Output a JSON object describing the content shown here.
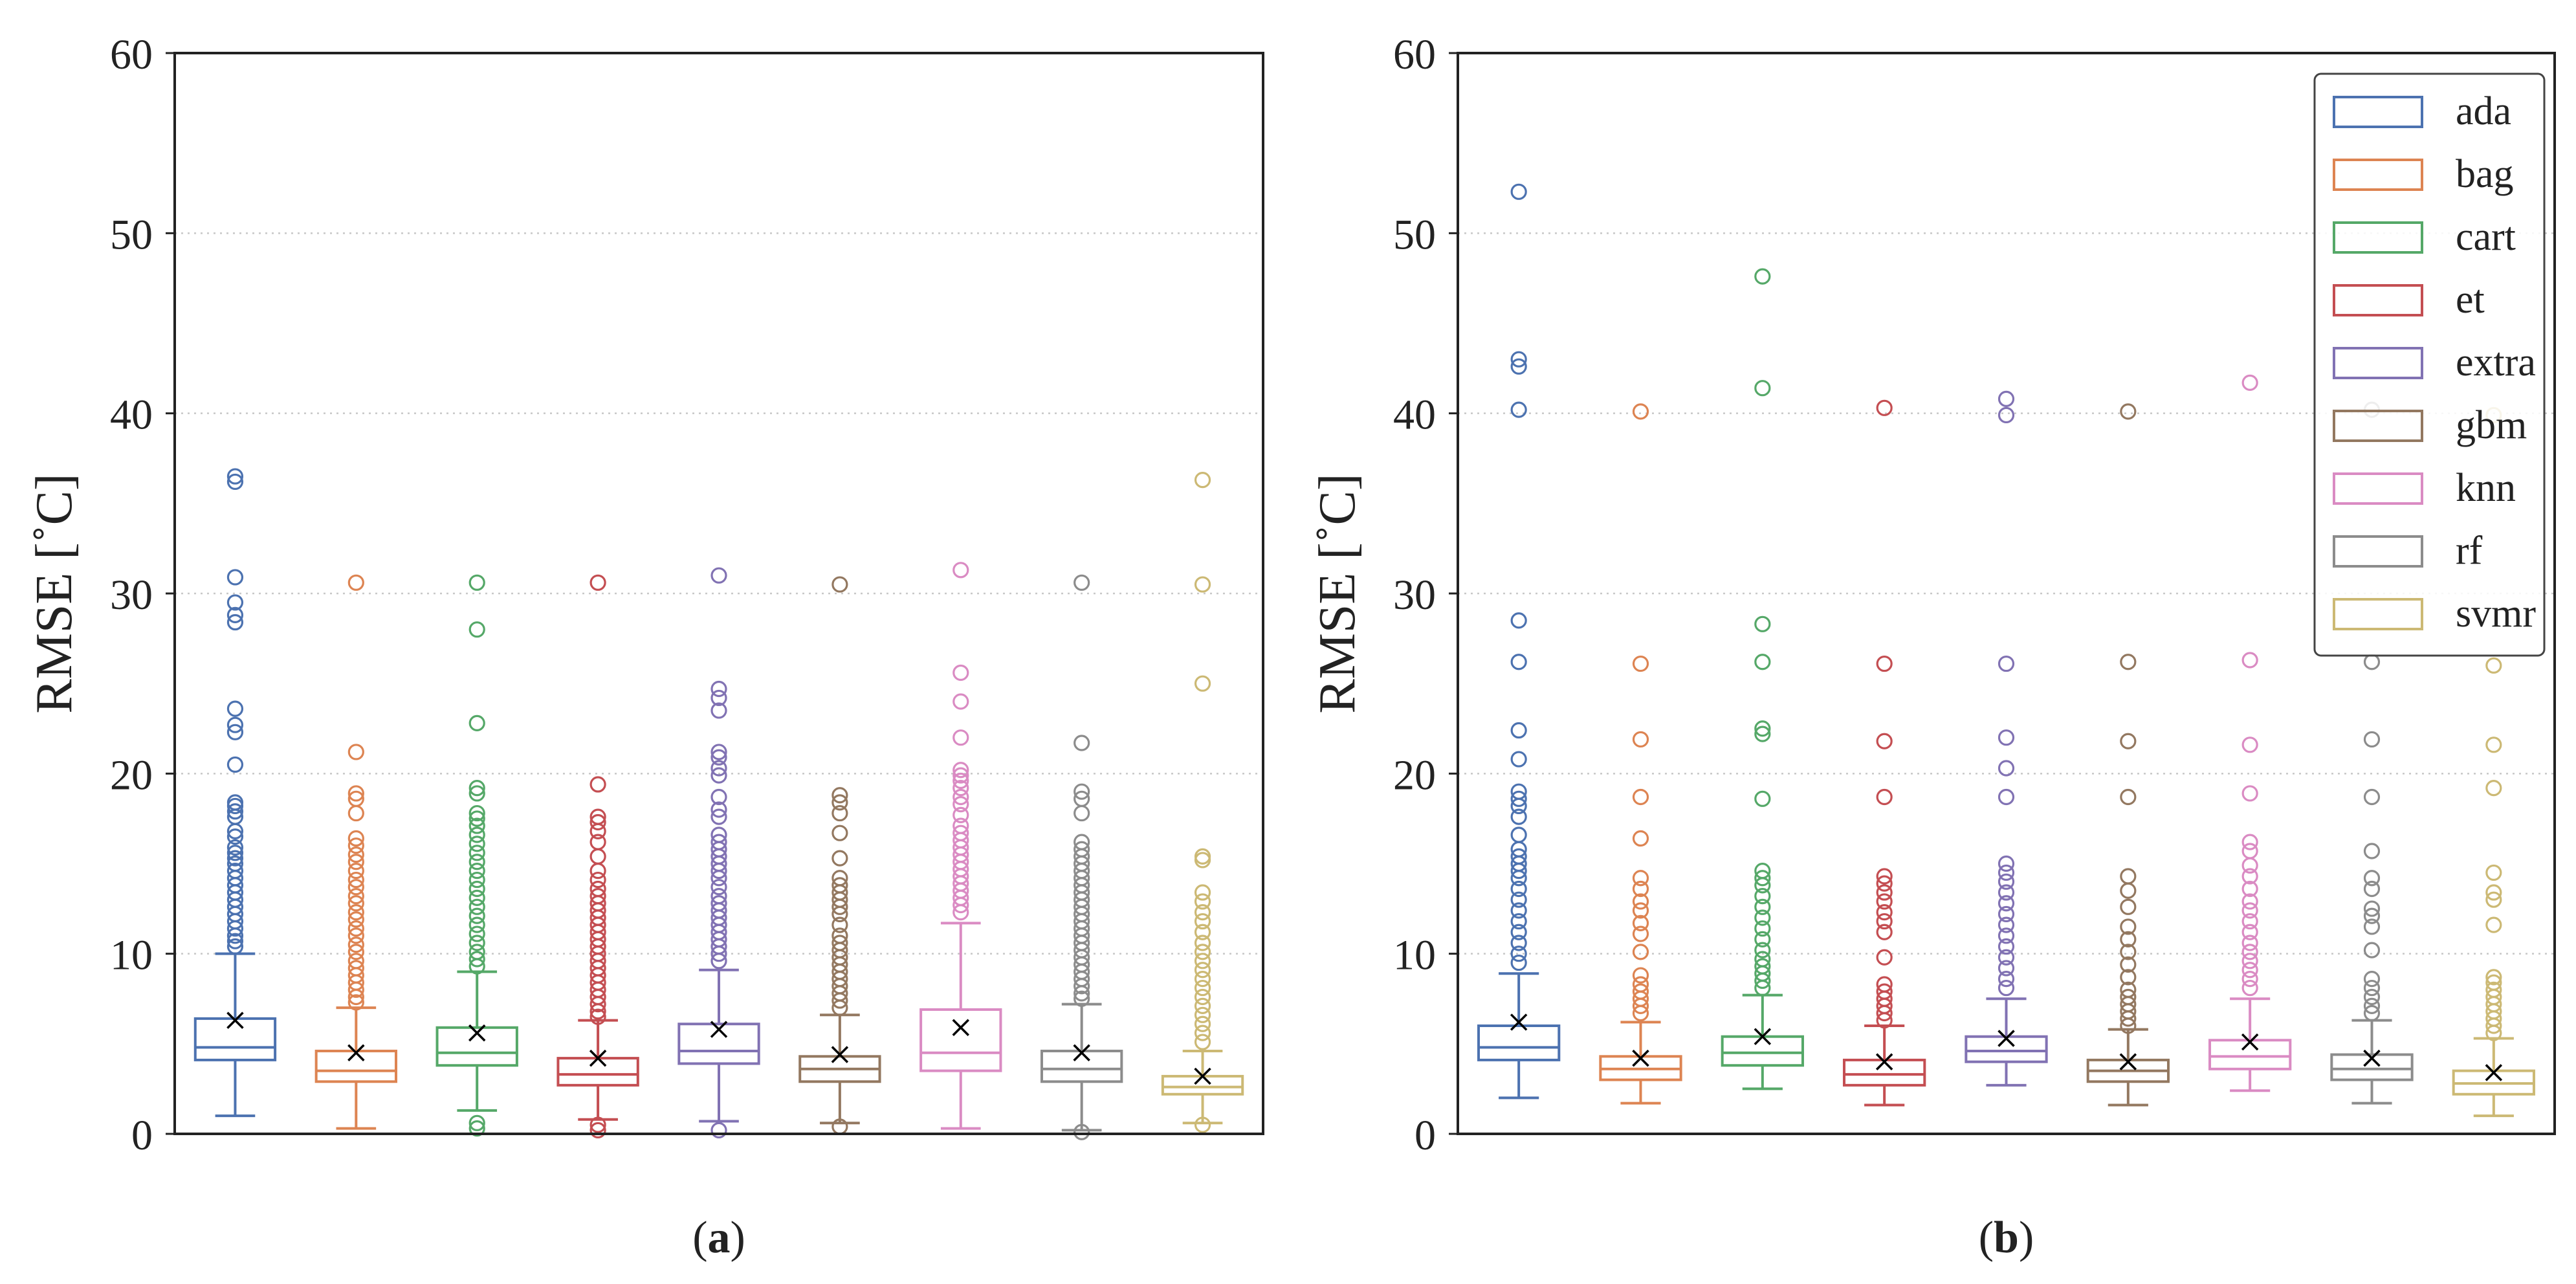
{
  "chart_data": [
    {
      "type": "box",
      "panel_label": "(a)",
      "ylabel": "RMSE [˚C]",
      "ylim": [
        0,
        60
      ],
      "yticks": [
        0,
        10,
        20,
        30,
        40,
        50,
        60
      ],
      "ytick_labels": [
        "0",
        "10",
        "20",
        "30",
        "40",
        "50",
        "60"
      ],
      "grid": "y dotted",
      "legend": null,
      "series": [
        {
          "name": "ada",
          "color": "#4c72b0",
          "whisker_low": 1.0,
          "q1": 4.1,
          "median": 4.8,
          "q3": 6.4,
          "whisker_high": 10.0,
          "mean": 6.3,
          "outliers": [
            36.5,
            36.2,
            30.9,
            29.5,
            28.8,
            28.4,
            23.6,
            22.7,
            22.3,
            20.5,
            18.4,
            18.2,
            17.9,
            17.6,
            16.8,
            16.5,
            15.9,
            15.6,
            15.3,
            15.0,
            14.6,
            14.2,
            13.8,
            13.4,
            13.0,
            12.6,
            12.2,
            11.8,
            11.4,
            11.0,
            10.7,
            10.4
          ]
        },
        {
          "name": "bag",
          "color": "#dd8452",
          "whisker_low": 0.3,
          "q1": 2.9,
          "median": 3.5,
          "q3": 4.6,
          "whisker_high": 7.0,
          "mean": 4.5,
          "outliers": [
            30.6,
            21.2,
            18.9,
            18.6,
            17.8,
            16.4,
            16.0,
            15.5,
            15.1,
            14.6,
            14.1,
            13.7,
            13.2,
            12.8,
            12.3,
            11.9,
            11.4,
            11.0,
            10.5,
            10.1,
            9.6,
            9.2,
            8.8,
            8.4,
            8.0,
            7.6,
            7.3
          ]
        },
        {
          "name": "cart",
          "color": "#55a868",
          "whisker_low": 1.3,
          "q1": 3.8,
          "median": 4.5,
          "q3": 5.9,
          "whisker_high": 9.0,
          "mean": 5.6,
          "outliers": [
            30.6,
            28.0,
            22.8,
            19.2,
            18.9,
            17.8,
            17.5,
            17.1,
            16.6,
            16.1,
            15.6,
            15.1,
            14.6,
            14.1,
            13.6,
            13.1,
            12.6,
            12.1,
            11.6,
            11.1,
            10.6,
            10.1,
            9.7,
            9.3,
            0.6,
            0.3
          ]
        },
        {
          "name": "et",
          "color": "#c44e52",
          "whisker_low": 0.8,
          "q1": 2.7,
          "median": 3.3,
          "q3": 4.2,
          "whisker_high": 6.3,
          "mean": 4.2,
          "outliers": [
            30.6,
            19.4,
            17.6,
            17.3,
            16.8,
            16.2,
            15.4,
            14.6,
            14.1,
            13.6,
            13.2,
            12.8,
            12.4,
            12.0,
            11.6,
            11.2,
            10.8,
            10.4,
            10.0,
            9.6,
            9.2,
            8.8,
            8.4,
            8.0,
            7.6,
            7.2,
            6.8,
            6.5,
            0.5,
            0.2
          ]
        },
        {
          "name": "extra",
          "color": "#8172b3",
          "whisker_low": 0.7,
          "q1": 3.9,
          "median": 4.6,
          "q3": 6.1,
          "whisker_high": 9.1,
          "mean": 5.8,
          "outliers": [
            31.0,
            24.7,
            24.2,
            23.5,
            21.2,
            20.9,
            20.3,
            19.9,
            18.7,
            18.0,
            17.6,
            16.6,
            16.2,
            15.8,
            15.4,
            15.0,
            14.6,
            14.2,
            13.7,
            13.2,
            12.8,
            12.4,
            12.0,
            11.6,
            11.2,
            10.8,
            10.4,
            10.0,
            9.6,
            0.2
          ]
        },
        {
          "name": "gbm",
          "color": "#937860",
          "whisker_low": 0.6,
          "q1": 2.9,
          "median": 3.6,
          "q3": 4.3,
          "whisker_high": 6.6,
          "mean": 4.4,
          "outliers": [
            30.5,
            18.8,
            18.4,
            17.8,
            16.7,
            15.3,
            14.2,
            13.8,
            13.4,
            13.0,
            12.6,
            12.2,
            11.6,
            11.0,
            10.6,
            10.2,
            9.8,
            9.4,
            9.0,
            8.6,
            8.2,
            7.8,
            7.4,
            7.0,
            0.4
          ]
        },
        {
          "name": "knn",
          "color": "#da8bc3",
          "whisker_low": 0.3,
          "q1": 3.5,
          "median": 4.5,
          "q3": 6.9,
          "whisker_high": 11.7,
          "mean": 5.9,
          "outliers": [
            31.3,
            25.6,
            24.0,
            22.0,
            20.2,
            19.9,
            19.6,
            19.2,
            18.7,
            18.3,
            17.7,
            17.1,
            16.7,
            16.3,
            15.9,
            15.5,
            15.1,
            14.7,
            14.3,
            13.9,
            13.5,
            13.1,
            12.7,
            12.3
          ]
        },
        {
          "name": "rf",
          "color": "#8c8c8c",
          "whisker_low": 0.2,
          "q1": 2.9,
          "median": 3.6,
          "q3": 4.6,
          "whisker_high": 7.2,
          "mean": 4.5,
          "outliers": [
            30.6,
            21.7,
            19.0,
            18.6,
            17.8,
            16.2,
            15.8,
            15.4,
            15.0,
            14.6,
            14.2,
            13.8,
            13.4,
            13.0,
            12.6,
            12.2,
            11.8,
            11.4,
            11.0,
            10.6,
            10.2,
            9.8,
            9.4,
            9.0,
            8.6,
            8.2,
            7.8,
            7.5,
            0.1
          ]
        },
        {
          "name": "svmr",
          "color": "#ccb974",
          "whisker_low": 0.6,
          "q1": 2.2,
          "median": 2.6,
          "q3": 3.2,
          "whisker_high": 4.6,
          "mean": 3.2,
          "outliers": [
            36.3,
            30.5,
            25.0,
            15.4,
            15.2,
            13.4,
            12.9,
            12.3,
            11.8,
            11.2,
            10.6,
            10.1,
            9.6,
            9.1,
            8.6,
            8.1,
            7.6,
            7.1,
            6.6,
            6.1,
            5.6,
            5.1,
            0.5
          ]
        }
      ]
    },
    {
      "type": "box",
      "panel_label": "(b)",
      "ylabel": "RMSE [˚C]",
      "ylim": [
        0,
        60
      ],
      "yticks": [
        0,
        10,
        20,
        30,
        40,
        50,
        60
      ],
      "ytick_labels": [
        "0",
        "10",
        "20",
        "30",
        "40",
        "50",
        "60"
      ],
      "grid": "y dotted",
      "legend": {
        "placement": "top-right",
        "entries": [
          "ada",
          "bag",
          "cart",
          "et",
          "extra",
          "gbm",
          "knn",
          "rf",
          "svmr"
        ]
      },
      "series": [
        {
          "name": "ada",
          "color": "#4c72b0",
          "whisker_low": 2.0,
          "q1": 4.1,
          "median": 4.8,
          "q3": 6.0,
          "whisker_high": 8.9,
          "mean": 6.2,
          "outliers": [
            52.3,
            43.0,
            42.6,
            40.2,
            28.5,
            26.2,
            22.4,
            20.8,
            19.0,
            18.6,
            18.2,
            17.6,
            16.6,
            15.8,
            15.4,
            15.0,
            14.6,
            14.2,
            13.6,
            13.0,
            12.4,
            11.8,
            11.2,
            10.6,
            10.0,
            9.5
          ]
        },
        {
          "name": "bag",
          "color": "#dd8452",
          "whisker_low": 1.7,
          "q1": 3.0,
          "median": 3.6,
          "q3": 4.3,
          "whisker_high": 6.2,
          "mean": 4.2,
          "outliers": [
            40.1,
            26.1,
            21.9,
            18.7,
            16.4,
            14.2,
            13.6,
            12.9,
            12.4,
            11.7,
            11.1,
            10.1,
            8.8,
            8.3,
            7.9,
            7.5,
            7.1,
            6.7
          ]
        },
        {
          "name": "cart",
          "color": "#55a868",
          "whisker_low": 2.5,
          "q1": 3.8,
          "median": 4.5,
          "q3": 5.4,
          "whisker_high": 7.7,
          "mean": 5.4,
          "outliers": [
            47.6,
            41.4,
            28.3,
            26.2,
            22.5,
            22.2,
            18.6,
            14.6,
            14.2,
            13.8,
            13.2,
            12.6,
            12.0,
            11.4,
            10.8,
            10.2,
            9.7,
            9.3,
            8.9,
            8.5,
            8.1
          ]
        },
        {
          "name": "et",
          "color": "#c44e52",
          "whisker_low": 1.6,
          "q1": 2.7,
          "median": 3.3,
          "q3": 4.1,
          "whisker_high": 6.0,
          "mean": 4.0,
          "outliers": [
            40.3,
            26.1,
            21.8,
            18.7,
            14.3,
            13.9,
            13.4,
            12.9,
            12.3,
            11.8,
            11.2,
            9.8,
            8.3,
            7.9,
            7.5,
            7.1,
            6.7,
            6.3
          ]
        },
        {
          "name": "extra",
          "color": "#8172b3",
          "whisker_low": 2.7,
          "q1": 4.0,
          "median": 4.6,
          "q3": 5.4,
          "whisker_high": 7.5,
          "mean": 5.3,
          "outliers": [
            40.8,
            39.9,
            26.1,
            22.0,
            20.3,
            18.7,
            15.0,
            14.5,
            14.0,
            13.4,
            12.8,
            12.2,
            11.6,
            11.0,
            10.4,
            9.8,
            9.2,
            8.6,
            8.1
          ]
        },
        {
          "name": "gbm",
          "color": "#937860",
          "whisker_low": 1.6,
          "q1": 2.9,
          "median": 3.5,
          "q3": 4.1,
          "whisker_high": 5.8,
          "mean": 4.0,
          "outliers": [
            40.1,
            26.2,
            21.8,
            18.7,
            14.3,
            13.5,
            12.6,
            11.5,
            10.8,
            10.1,
            9.4,
            8.7,
            8.0,
            7.6,
            7.2,
            6.8,
            6.4,
            6.0
          ]
        },
        {
          "name": "knn",
          "color": "#da8bc3",
          "whisker_low": 2.4,
          "q1": 3.6,
          "median": 4.3,
          "q3": 5.2,
          "whisker_high": 7.5,
          "mean": 5.1,
          "outliers": [
            41.7,
            26.3,
            21.6,
            18.9,
            16.2,
            15.7,
            14.9,
            14.3,
            13.6,
            12.9,
            12.4,
            11.8,
            11.2,
            10.6,
            10.1,
            9.6,
            9.1,
            8.6,
            8.1
          ]
        },
        {
          "name": "rf",
          "color": "#8c8c8c",
          "whisker_low": 1.7,
          "q1": 3.0,
          "median": 3.6,
          "q3": 4.4,
          "whisker_high": 6.3,
          "mean": 4.2,
          "outliers": [
            40.2,
            26.2,
            21.9,
            18.7,
            15.7,
            14.2,
            13.6,
            12.5,
            12.1,
            11.5,
            10.2,
            8.6,
            8.1,
            7.6,
            7.1,
            6.7
          ]
        },
        {
          "name": "svmr",
          "color": "#ccb974",
          "whisker_low": 1.0,
          "q1": 2.2,
          "median": 2.8,
          "q3": 3.5,
          "whisker_high": 5.3,
          "mean": 3.4,
          "outliers": [
            39.9,
            26.0,
            21.6,
            19.2,
            14.5,
            13.4,
            13.0,
            11.6,
            8.7,
            8.4,
            8.0,
            7.6,
            7.2,
            6.8,
            6.4,
            6.0,
            5.6
          ]
        }
      ]
    }
  ]
}
